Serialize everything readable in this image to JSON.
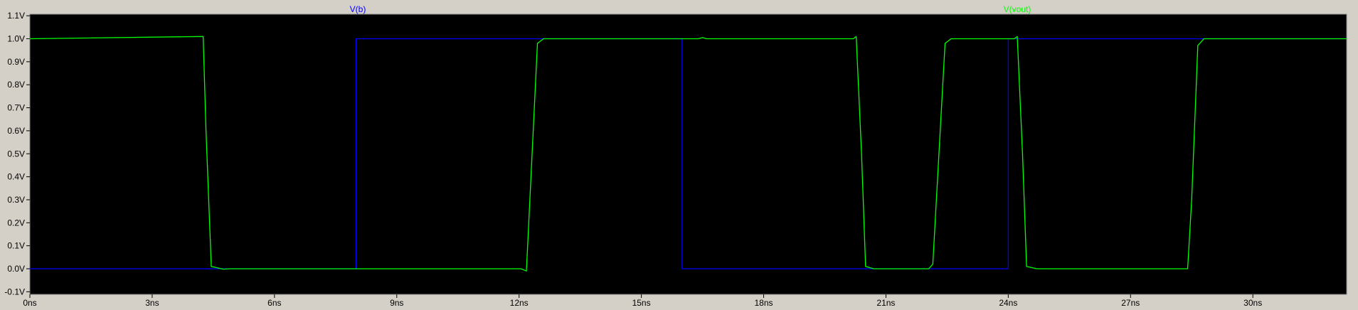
{
  "chart_data": {
    "type": "line",
    "background": "#000000",
    "frame_color": "#d4d0c8",
    "grid": false,
    "xlim": [
      0,
      32.3
    ],
    "ylim": [
      -0.1,
      1.1
    ],
    "x_ticks": [
      0,
      3,
      6,
      9,
      12,
      15,
      18,
      21,
      24,
      27,
      30
    ],
    "x_tick_labels": [
      "0ns",
      "3ns",
      "6ns",
      "9ns",
      "12ns",
      "15ns",
      "18ns",
      "21ns",
      "24ns",
      "27ns",
      "30ns"
    ],
    "y_ticks": [
      1.1,
      1.0,
      0.9,
      0.8,
      0.7,
      0.6,
      0.5,
      0.4,
      0.3,
      0.2,
      0.1,
      0.0,
      -0.1
    ],
    "y_tick_labels": [
      "1.1V",
      "1.0V",
      "0.9V",
      "0.8V",
      "0.7V",
      "0.6V",
      "0.5V",
      "0.4V",
      "0.3V",
      "0.2V",
      "0.1V",
      "0.0V",
      "-0.1V"
    ],
    "series": [
      {
        "name": "V(b)",
        "color": "#0000ff",
        "x": [
          0,
          8.0,
          8.0,
          16.0,
          16.0,
          24.0,
          24.0,
          32.3
        ],
        "y": [
          0.0,
          0.0,
          1.0,
          1.0,
          0.0,
          0.0,
          1.0,
          1.0
        ]
      },
      {
        "name": "V(vout)",
        "color": "#00ff00",
        "x": [
          0,
          4.25,
          4.32,
          4.45,
          4.75,
          4.9,
          12.05,
          12.18,
          12.32,
          12.45,
          12.6,
          16.4,
          16.5,
          16.6,
          20.2,
          20.27,
          20.4,
          20.5,
          20.7,
          22.05,
          22.15,
          22.3,
          22.45,
          22.6,
          24.15,
          24.22,
          24.35,
          24.45,
          24.7,
          28.4,
          28.5,
          28.65,
          28.8,
          29.0,
          32.3
        ],
        "y": [
          1.0,
          1.01,
          0.6,
          0.01,
          -0.002,
          0.0,
          0.0,
          -0.01,
          0.5,
          0.98,
          1.0,
          1.0,
          1.005,
          1.0,
          1.0,
          1.01,
          0.5,
          0.01,
          0.0,
          0.0,
          0.02,
          0.5,
          0.98,
          1.0,
          1.0,
          1.01,
          0.5,
          0.01,
          0.0,
          0.0,
          0.3,
          0.97,
          1.0,
          1.0,
          1.0
        ]
      }
    ]
  }
}
